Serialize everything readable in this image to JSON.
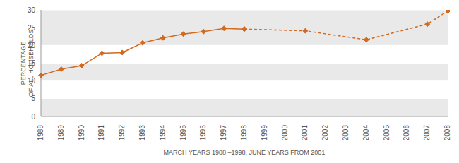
{
  "chart_data": {
    "type": "line",
    "categories": [
      "1988",
      "1989",
      "1990",
      "1991",
      "1992",
      "1993",
      "1994",
      "1995",
      "1996",
      "1997",
      "1998",
      "1999",
      "2000",
      "2001",
      "2002",
      "2003",
      "2004",
      "2005",
      "2006",
      "2007",
      "2008"
    ],
    "values": [
      11.6,
      13.3,
      14.3,
      17.8,
      18.0,
      20.7,
      22.1,
      23.2,
      23.9,
      24.8,
      24.6,
      null,
      null,
      24.1,
      null,
      null,
      21.6,
      null,
      null,
      26.0,
      29.7
    ],
    "color": "#d2691e",
    "marker": "diamond",
    "line_style": "dashed",
    "x_label": "MARCH YEARS 1988 –1998, JUNE YEARS FROM 2001",
    "y_label": "PERCENTAGE\nOF ALL HOUSEHOLDS",
    "ylim": [
      0,
      30
    ],
    "yticks": [
      0,
      5,
      10,
      15,
      20,
      25,
      30
    ],
    "grid": true
  }
}
